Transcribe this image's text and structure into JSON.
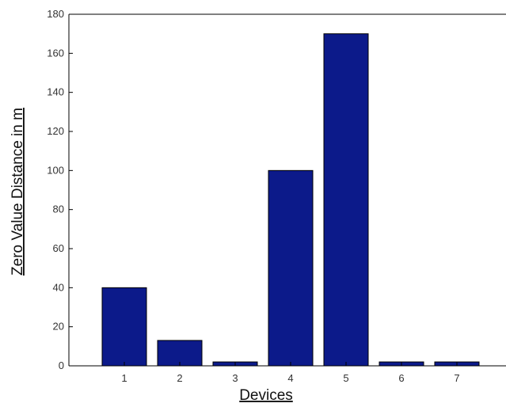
{
  "chart_data": {
    "type": "bar",
    "categories": [
      "1",
      "2",
      "3",
      "4",
      "5",
      "6",
      "7"
    ],
    "values": [
      40,
      13,
      2,
      100,
      170,
      2,
      2
    ],
    "xlabel": "Devices",
    "ylabel": "Zero Value Distance in m",
    "ylim": [
      0,
      180
    ],
    "yticks": [
      0,
      20,
      40,
      60,
      80,
      100,
      120,
      140,
      160,
      180
    ],
    "grid": false,
    "bar_color": "#0c1a8a"
  }
}
